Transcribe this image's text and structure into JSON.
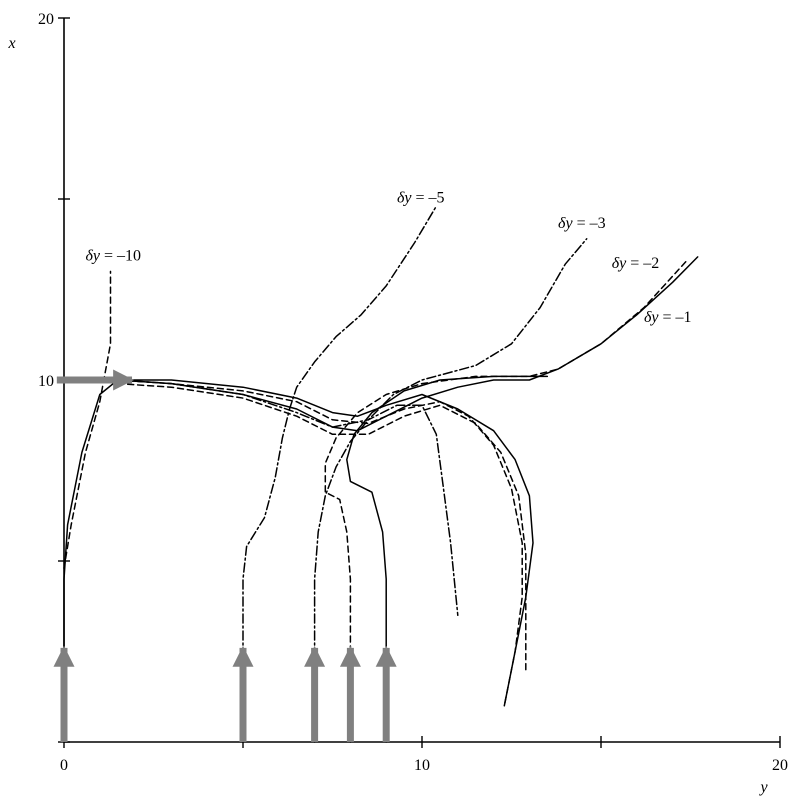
{
  "chart_data": {
    "type": "line",
    "title": "",
    "xlabel": "y",
    "ylabel": "x",
    "xlim": [
      0,
      20
    ],
    "ylim": [
      0,
      20
    ],
    "x_ticks": [
      0,
      5,
      10,
      15,
      20
    ],
    "y_ticks": [
      0,
      5,
      10,
      15,
      20
    ],
    "x_tick_labels": [
      "0",
      "10",
      "20"
    ],
    "y_tick_labels": [
      "10",
      "20"
    ],
    "grid": false,
    "colors": {
      "axis": "#000000",
      "curve": "#000000",
      "arrow": "#808080"
    },
    "arrows": [
      {
        "y": 0,
        "x_from": 0,
        "x_to": 2.6,
        "direction": "up"
      },
      {
        "y": 5,
        "x_from": 0,
        "x_to": 2.6,
        "direction": "up"
      },
      {
        "y": 7,
        "x_from": 0,
        "x_to": 2.6,
        "direction": "up"
      },
      {
        "y": 8,
        "x_from": 0,
        "x_to": 2.6,
        "direction": "up"
      },
      {
        "y": 9,
        "x_from": 0,
        "x_to": 2.6,
        "direction": "up"
      },
      {
        "y_from": -0.2,
        "y_to": 1.9,
        "x": 10,
        "direction": "right"
      }
    ],
    "annotations": [
      {
        "symbol": "δy",
        "text": " = –10",
        "y": 0.6,
        "x": 13.3
      },
      {
        "symbol": "δy",
        "text": " = –5",
        "y": 9.3,
        "x": 14.9
      },
      {
        "symbol": "δy",
        "text": " = –3",
        "y": 13.8,
        "x": 14.2
      },
      {
        "symbol": "δy",
        "text": " = –2",
        "y": 15.3,
        "x": 13.1
      },
      {
        "symbol": "δy",
        "text": " = –1",
        "y": 16.2,
        "x": 11.6
      }
    ],
    "series": [
      {
        "style": "solid",
        "points": [
          [
            0,
            0
          ],
          [
            0,
            1.5
          ],
          [
            0,
            3
          ],
          [
            0,
            4.5
          ],
          [
            0.1,
            6
          ],
          [
            0.5,
            8
          ],
          [
            1,
            9.6
          ],
          [
            1.5,
            10.0
          ],
          [
            3,
            10.0
          ],
          [
            5,
            9.8
          ],
          [
            6.5,
            9.5
          ],
          [
            7.5,
            9.1
          ],
          [
            8.2,
            9.0
          ],
          [
            9,
            9.3
          ],
          [
            10,
            9.6
          ],
          [
            11,
            9.2
          ],
          [
            12,
            8.6
          ],
          [
            12.6,
            7.8
          ],
          [
            13,
            6.8
          ],
          [
            13.1,
            5.5
          ],
          [
            12.9,
            4.0
          ],
          [
            12.6,
            2.5
          ],
          [
            12.3,
            1.0
          ]
        ]
      },
      {
        "style": "solid",
        "points": [
          [
            1.5,
            10.0
          ],
          [
            3,
            9.9
          ],
          [
            5,
            9.6
          ],
          [
            6.5,
            9.2
          ],
          [
            7.5,
            8.7
          ],
          [
            8.2,
            8.6
          ],
          [
            9,
            9.0
          ],
          [
            10,
            9.5
          ],
          [
            11,
            9.8
          ],
          [
            12,
            10.0
          ],
          [
            13,
            10.0
          ],
          [
            13.8,
            10.3
          ],
          [
            15,
            11.0
          ],
          [
            16,
            11.8
          ],
          [
            17,
            12.7
          ],
          [
            17.7,
            13.4
          ]
        ]
      },
      {
        "style": "solid",
        "points": [
          [
            9,
            0
          ],
          [
            9,
            1.5
          ],
          [
            9,
            3
          ],
          [
            9,
            4.5
          ],
          [
            8.9,
            5.8
          ],
          [
            8.6,
            6.9
          ],
          [
            8.0,
            7.2
          ],
          [
            7.9,
            7.8
          ],
          [
            8.1,
            8.5
          ],
          [
            8.6,
            9.1
          ],
          [
            9.5,
            9.7
          ],
          [
            10.5,
            10.0
          ],
          [
            12,
            10.1
          ],
          [
            13.5,
            10.1
          ]
        ]
      },
      {
        "style": "dash",
        "points": [
          [
            0,
            4.8
          ],
          [
            0.2,
            6
          ],
          [
            0.6,
            8
          ],
          [
            1,
            9.4
          ],
          [
            1.3,
            11
          ],
          [
            1.3,
            12.0
          ],
          [
            1.3,
            13.0
          ]
        ]
      },
      {
        "style": "dash",
        "points": [
          [
            8,
            0
          ],
          [
            8,
            1.5
          ],
          [
            8,
            3
          ],
          [
            8,
            4.5
          ],
          [
            7.9,
            5.8
          ],
          [
            7.7,
            6.7
          ],
          [
            7.3,
            6.9
          ],
          [
            7.3,
            7.7
          ],
          [
            7.6,
            8.4
          ],
          [
            8.2,
            9.1
          ],
          [
            9,
            9.6
          ],
          [
            10,
            9.9
          ],
          [
            11.5,
            10.1
          ],
          [
            13,
            10.1
          ],
          [
            13.8,
            10.3
          ],
          [
            15,
            11.0
          ],
          [
            16.2,
            12.0
          ],
          [
            17.4,
            13.3
          ]
        ]
      },
      {
        "style": "dash",
        "points": [
          [
            1.5,
            10.0
          ],
          [
            3,
            9.9
          ],
          [
            5,
            9.7
          ],
          [
            6.5,
            9.4
          ],
          [
            7.5,
            8.9
          ],
          [
            8.5,
            8.8
          ],
          [
            9.5,
            9.2
          ],
          [
            10.5,
            9.4
          ],
          [
            11.3,
            9.0
          ],
          [
            12,
            8.2
          ],
          [
            12.5,
            7.0
          ],
          [
            12.8,
            5.5
          ],
          [
            12.8,
            4.0
          ],
          [
            12.6,
            2.5
          ],
          [
            12.3,
            1.0
          ]
        ]
      },
      {
        "style": "dash",
        "points": [
          [
            1.5,
            9.9
          ],
          [
            3,
            9.8
          ],
          [
            5,
            9.5
          ],
          [
            6.5,
            9.0
          ],
          [
            7.5,
            8.5
          ],
          [
            8.5,
            8.5
          ],
          [
            9.5,
            9.0
          ],
          [
            10.5,
            9.3
          ],
          [
            11.5,
            8.8
          ],
          [
            12.2,
            8.0
          ],
          [
            12.7,
            6.8
          ],
          [
            12.9,
            5.2
          ],
          [
            12.9,
            3.5
          ],
          [
            12.9,
            2.0
          ]
        ]
      },
      {
        "style": "dash-dot",
        "points": [
          [
            5,
            0
          ],
          [
            5,
            1.5
          ],
          [
            5,
            3
          ],
          [
            5,
            4.5
          ],
          [
            5.1,
            5.4
          ],
          [
            5.6,
            6.2
          ],
          [
            5.9,
            7.3
          ],
          [
            6.1,
            8.4
          ],
          [
            6.3,
            9.2
          ],
          [
            6.5,
            9.8
          ],
          [
            7.0,
            10.5
          ],
          [
            7.6,
            11.2
          ],
          [
            8.3,
            11.8
          ],
          [
            9,
            12.6
          ],
          [
            9.8,
            13.8
          ],
          [
            10.4,
            14.8
          ]
        ]
      },
      {
        "style": "dash-dot",
        "points": [
          [
            7,
            0
          ],
          [
            7,
            1.5
          ],
          [
            7,
            3
          ],
          [
            7,
            4.5
          ],
          [
            7.1,
            5.8
          ],
          [
            7.3,
            6.8
          ],
          [
            7.6,
            7.6
          ],
          [
            8.0,
            8.3
          ],
          [
            8.5,
            8.9
          ],
          [
            9.2,
            9.6
          ],
          [
            10,
            10.0
          ],
          [
            11.5,
            10.4
          ],
          [
            12.5,
            11.0
          ],
          [
            13.3,
            12.0
          ],
          [
            14,
            13.2
          ],
          [
            14.6,
            13.9
          ]
        ]
      },
      {
        "style": "dash-dot",
        "points": [
          [
            1.5,
            10.0
          ],
          [
            3,
            9.9
          ],
          [
            5,
            9.6
          ],
          [
            6.5,
            9.1
          ],
          [
            7.5,
            8.7
          ],
          [
            8.5,
            8.9
          ],
          [
            9.3,
            9.3
          ],
          [
            10,
            9.3
          ],
          [
            10.4,
            8.5
          ],
          [
            10.6,
            7.0
          ],
          [
            10.8,
            5.5
          ],
          [
            11,
            3.5
          ]
        ]
      }
    ]
  }
}
